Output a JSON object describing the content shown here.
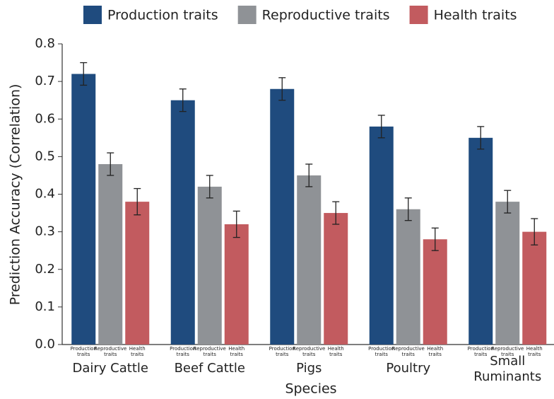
{
  "chart_data": {
    "type": "bar",
    "x_label": "Species",
    "y_label": "Prediction Accuracy (Correlation)",
    "categories": [
      "Dairy Cattle",
      "Beef Cattle",
      "Pigs",
      "Poultry",
      "Small Ruminants"
    ],
    "series": [
      {
        "name": "Production traits",
        "color": "#1f4b7e",
        "values": [
          0.72,
          0.65,
          0.68,
          0.58,
          0.55
        ],
        "errors": [
          0.03,
          0.03,
          0.03,
          0.03,
          0.03
        ]
      },
      {
        "name": "Reproductive traits",
        "color": "#8f9296",
        "values": [
          0.48,
          0.42,
          0.45,
          0.36,
          0.38
        ],
        "errors": [
          0.03,
          0.03,
          0.03,
          0.03,
          0.03
        ]
      },
      {
        "name": "Health traits",
        "color": "#c25b5f",
        "values": [
          0.38,
          0.32,
          0.35,
          0.28,
          0.3
        ],
        "errors": [
          0.035,
          0.035,
          0.03,
          0.03,
          0.035
        ]
      }
    ],
    "ylim": [
      0,
      0.8
    ],
    "yticks": [
      {
        "value": 0,
        "label": "0.0"
      },
      0.1,
      0.2,
      0.3,
      0.4,
      0.5,
      0.6,
      0.7,
      0.8
    ],
    "legend": "top"
  }
}
